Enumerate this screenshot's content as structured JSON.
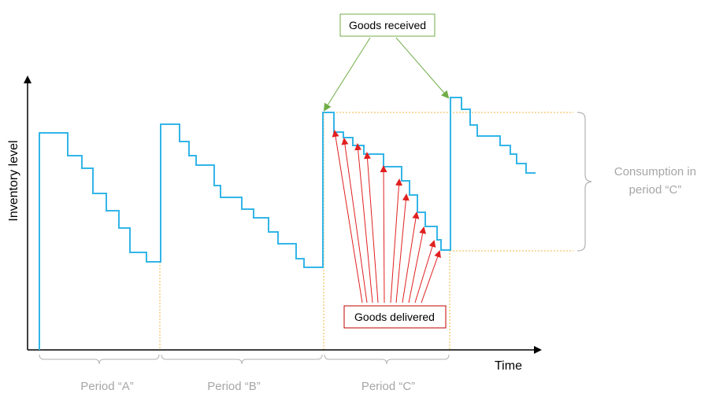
{
  "axes": {
    "y_label": "Inventory level",
    "x_label": "Time"
  },
  "periods": [
    {
      "label": "Period “A”"
    },
    {
      "label": "Period “B”"
    },
    {
      "label": "Period “C”"
    }
  ],
  "callouts": {
    "goods_received": "Goods received",
    "goods_delivered": "Goods delivered",
    "consumption_line1": "Consumption in",
    "consumption_line2": "period “C”"
  },
  "colors": {
    "inventory_line": "#33b5e8",
    "received_arrow": "#70ad47",
    "delivered_arrow": "#e02020",
    "period_divider": "#f0b440",
    "bracket": "#b0b0b0",
    "axis": "#000000"
  }
}
